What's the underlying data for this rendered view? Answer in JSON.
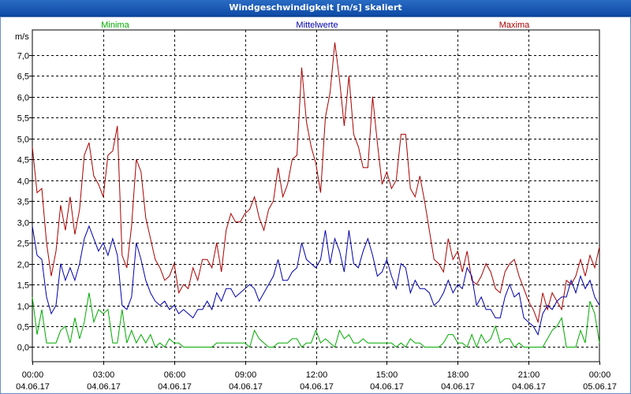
{
  "window": {
    "title": "Windgeschwindigkeit [m/s] skaliert"
  },
  "legend": {
    "min_label": "Minima",
    "mean_label": "Mittelwerte",
    "max_label": "Maxima"
  },
  "colors": {
    "min": "#00aa00",
    "mean": "#0000aa",
    "max": "#aa0000",
    "grid": "#000000"
  },
  "chart_data": {
    "type": "line",
    "title": "Windgeschwindigkeit [m/s] skaliert",
    "ylabel": "m/s",
    "xlabel": "",
    "ylim": [
      -0.35,
      7.6
    ],
    "xlim_hours": [
      0,
      24
    ],
    "grid": true,
    "yticks": [
      "0,0",
      "0,5",
      "1,0",
      "1,5",
      "2,0",
      "2,5",
      "3,0",
      "3,5",
      "4,0",
      "4,5",
      "5,0",
      "5,5",
      "6,0",
      "6,5",
      "7,0"
    ],
    "xticks": [
      {
        "time": "00:00",
        "date": "04.06.17"
      },
      {
        "time": "03:00",
        "date": "04.06.17"
      },
      {
        "time": "06:00",
        "date": "04.06.17"
      },
      {
        "time": "09:00",
        "date": "04.06.17"
      },
      {
        "time": "12:00",
        "date": "04.06.17"
      },
      {
        "time": "15:00",
        "date": "04.06.17"
      },
      {
        "time": "18:00",
        "date": "04.06.17"
      },
      {
        "time": "21:00",
        "date": "04.06.17"
      },
      {
        "time": "00:00",
        "date": "05.06.17"
      }
    ],
    "series": [
      {
        "name": "Maxima",
        "color": "#aa0000",
        "x": [
          0,
          0.2,
          0.4,
          0.6,
          0.8,
          1.0,
          1.2,
          1.4,
          1.6,
          1.8,
          2.0,
          2.2,
          2.4,
          2.6,
          2.8,
          3.0,
          3.2,
          3.4,
          3.6,
          3.8,
          4.0,
          4.2,
          4.4,
          4.6,
          4.8,
          5.0,
          5.2,
          5.4,
          5.6,
          5.8,
          6.0,
          6.2,
          6.4,
          6.6,
          6.8,
          7.0,
          7.2,
          7.4,
          7.6,
          7.8,
          8.0,
          8.2,
          8.4,
          8.6,
          8.8,
          9.0,
          9.2,
          9.4,
          9.6,
          9.8,
          10.0,
          10.2,
          10.4,
          10.6,
          10.8,
          11.0,
          11.2,
          11.4,
          11.6,
          11.8,
          12.0,
          12.2,
          12.4,
          12.6,
          12.8,
          13.0,
          13.2,
          13.4,
          13.6,
          13.8,
          14.0,
          14.2,
          14.4,
          14.6,
          14.8,
          15.0,
          15.2,
          15.4,
          15.6,
          15.8,
          16.0,
          16.2,
          16.4,
          16.6,
          16.8,
          17.0,
          17.2,
          17.4,
          17.6,
          17.8,
          18.0,
          18.2,
          18.4,
          18.6,
          18.8,
          19.0,
          19.2,
          19.4,
          19.6,
          19.8,
          20.0,
          20.2,
          20.4,
          20.6,
          20.8,
          21.0,
          21.2,
          21.4,
          21.6,
          21.8,
          22.0,
          22.2,
          22.4,
          22.6,
          22.8,
          23.0,
          23.2,
          23.4,
          23.6,
          23.8,
          24.0
        ],
        "values": [
          4.8,
          3.7,
          3.8,
          2.5,
          1.7,
          2.3,
          3.4,
          2.8,
          3.6,
          2.7,
          3.3,
          4.6,
          4.9,
          4.1,
          3.9,
          3.6,
          4.6,
          4.7,
          5.3,
          2.2,
          1.9,
          2.9,
          4.5,
          4.2,
          3.1,
          2.6,
          2.1,
          1.9,
          1.6,
          1.7,
          2.0,
          1.3,
          1.5,
          1.4,
          1.9,
          1.6,
          2.1,
          2.1,
          1.9,
          2.5,
          1.8,
          2.8,
          3.2,
          3.0,
          3.0,
          3.2,
          3.3,
          3.6,
          3.1,
          2.8,
          3.3,
          3.5,
          4.3,
          3.6,
          3.9,
          4.5,
          4.6,
          6.7,
          5.4,
          4.8,
          4.4,
          3.7,
          5.5,
          6.1,
          7.3,
          6.4,
          5.3,
          6.5,
          5.1,
          4.8,
          4.3,
          4.3,
          6.0,
          4.9,
          3.9,
          4.2,
          3.8,
          4.0,
          5.1,
          5.1,
          3.8,
          3.6,
          4.1,
          3.5,
          2.8,
          2.1,
          2.0,
          1.8,
          2.6,
          2.1,
          2.3,
          1.8,
          2.3,
          1.6,
          1.5,
          1.7,
          2.0,
          1.8,
          1.4,
          1.3,
          1.8,
          2.0,
          2.1,
          1.7,
          1.4,
          1.1,
          0.9,
          0.6,
          1.3,
          0.9,
          1.3,
          1.1,
          0.9,
          1.6,
          1.5,
          1.7,
          2.1,
          1.7,
          2.2,
          1.9,
          2.4
        ]
      },
      {
        "name": "Mittelwerte",
        "color": "#0000aa",
        "x": [
          0,
          0.2,
          0.4,
          0.6,
          0.8,
          1.0,
          1.2,
          1.4,
          1.6,
          1.8,
          2.0,
          2.2,
          2.4,
          2.6,
          2.8,
          3.0,
          3.2,
          3.4,
          3.6,
          3.8,
          4.0,
          4.2,
          4.4,
          4.6,
          4.8,
          5.0,
          5.2,
          5.4,
          5.6,
          5.8,
          6.0,
          6.2,
          6.4,
          6.6,
          6.8,
          7.0,
          7.2,
          7.4,
          7.6,
          7.8,
          8.0,
          8.2,
          8.4,
          8.6,
          8.8,
          9.0,
          9.2,
          9.4,
          9.6,
          9.8,
          10.0,
          10.2,
          10.4,
          10.6,
          10.8,
          11.0,
          11.2,
          11.4,
          11.6,
          11.8,
          12.0,
          12.2,
          12.4,
          12.6,
          12.8,
          13.0,
          13.2,
          13.4,
          13.6,
          13.8,
          14.0,
          14.2,
          14.4,
          14.6,
          14.8,
          15.0,
          15.2,
          15.4,
          15.6,
          15.8,
          16.0,
          16.2,
          16.4,
          16.6,
          16.8,
          17.0,
          17.2,
          17.4,
          17.6,
          17.8,
          18.0,
          18.2,
          18.4,
          18.6,
          18.8,
          19.0,
          19.2,
          19.4,
          19.6,
          19.8,
          20.0,
          20.2,
          20.4,
          20.6,
          20.8,
          21.0,
          21.2,
          21.4,
          21.6,
          21.8,
          22.0,
          22.2,
          22.4,
          22.6,
          22.8,
          23.0,
          23.2,
          23.4,
          23.6,
          23.8,
          24.0
        ],
        "values": [
          2.9,
          2.2,
          2.1,
          1.2,
          0.8,
          1.0,
          2.0,
          1.6,
          1.9,
          1.6,
          2.0,
          2.6,
          2.9,
          2.6,
          2.3,
          2.5,
          2.2,
          2.6,
          2.2,
          1.0,
          0.9,
          1.2,
          2.5,
          2.1,
          1.6,
          1.3,
          1.1,
          1.0,
          1.1,
          0.9,
          1.0,
          0.8,
          0.9,
          0.8,
          0.7,
          0.9,
          0.9,
          1.1,
          0.9,
          1.3,
          1.1,
          1.4,
          1.4,
          1.2,
          1.3,
          1.4,
          1.5,
          1.4,
          1.1,
          1.3,
          1.5,
          1.7,
          2.1,
          1.6,
          1.6,
          1.8,
          1.9,
          2.5,
          2.1,
          2.0,
          1.9,
          2.1,
          2.8,
          2.0,
          2.6,
          2.3,
          1.8,
          2.8,
          2.0,
          1.9,
          2.3,
          2.6,
          2.2,
          1.7,
          1.8,
          2.1,
          1.7,
          1.4,
          2.0,
          1.9,
          1.3,
          1.6,
          1.4,
          1.4,
          1.3,
          1.0,
          1.1,
          1.3,
          1.6,
          1.3,
          1.5,
          1.4,
          1.9,
          1.7,
          1.0,
          1.2,
          0.9,
          0.9,
          0.7,
          0.7,
          1.2,
          1.5,
          1.2,
          1.3,
          0.7,
          0.6,
          0.5,
          0.3,
          0.8,
          1.0,
          0.9,
          1.1,
          1.2,
          1.2,
          1.6,
          1.3,
          1.7,
          1.4,
          1.6,
          1.2,
          1.0
        ]
      },
      {
        "name": "Minima",
        "color": "#00aa00",
        "x": [
          0,
          0.2,
          0.4,
          0.6,
          0.8,
          1.0,
          1.2,
          1.4,
          1.6,
          1.8,
          2.0,
          2.2,
          2.4,
          2.6,
          2.8,
          3.0,
          3.2,
          3.4,
          3.6,
          3.8,
          4.0,
          4.2,
          4.4,
          4.6,
          4.8,
          5.0,
          5.2,
          5.4,
          5.6,
          5.8,
          6.0,
          6.2,
          6.4,
          6.6,
          6.8,
          7.0,
          7.2,
          7.4,
          7.6,
          7.8,
          8.0,
          8.2,
          8.4,
          8.6,
          8.8,
          9.0,
          9.2,
          9.4,
          9.6,
          9.8,
          10.0,
          10.2,
          10.4,
          10.6,
          10.8,
          11.0,
          11.2,
          11.4,
          11.6,
          11.8,
          12.0,
          12.2,
          12.4,
          12.6,
          12.8,
          13.0,
          13.2,
          13.4,
          13.6,
          13.8,
          14.0,
          14.2,
          14.4,
          14.6,
          14.8,
          15.0,
          15.2,
          15.4,
          15.6,
          15.8,
          16.0,
          16.2,
          16.4,
          16.6,
          16.8,
          17.0,
          17.2,
          17.4,
          17.6,
          17.8,
          18.0,
          18.2,
          18.4,
          18.6,
          18.8,
          19.0,
          19.2,
          19.4,
          19.6,
          19.8,
          20.0,
          20.2,
          20.4,
          20.6,
          20.8,
          21.0,
          21.2,
          21.4,
          21.6,
          21.8,
          22.0,
          22.2,
          22.4,
          22.6,
          22.8,
          23.0,
          23.2,
          23.4,
          23.6,
          23.8,
          24.0
        ],
        "values": [
          1.2,
          0.3,
          0.9,
          0.1,
          0.1,
          0.1,
          0.4,
          0.5,
          0.1,
          0.7,
          0.2,
          0.6,
          1.3,
          0.6,
          0.9,
          0.8,
          0.9,
          0.1,
          0.1,
          0.9,
          0.1,
          0.4,
          0.1,
          0.3,
          0.1,
          0.3,
          0.0,
          0.1,
          0.0,
          0.2,
          0.1,
          0.1,
          0.0,
          0.0,
          0.0,
          0.0,
          0.0,
          0.0,
          0.0,
          0.1,
          0.1,
          0.1,
          0.1,
          0.1,
          0.1,
          0.1,
          0.0,
          0.4,
          0.2,
          0.1,
          0.0,
          0.0,
          0.1,
          0.1,
          0.1,
          0.2,
          0.2,
          0.0,
          0.1,
          0.1,
          0.4,
          0.1,
          0.2,
          0.1,
          0.0,
          0.4,
          0.2,
          0.3,
          0.1,
          0.1,
          0.2,
          0.1,
          0.1,
          0.1,
          0.1,
          0.1,
          0.1,
          0.0,
          0.1,
          0.0,
          0.2,
          0.1,
          0.1,
          0.0,
          0.0,
          0.0,
          0.0,
          0.1,
          0.3,
          0.3,
          0.1,
          0.1,
          0.0,
          0.3,
          0.0,
          0.3,
          0.1,
          0.2,
          0.5,
          0.1,
          0.2,
          0.2,
          0.0,
          0.1,
          0.0,
          0.0,
          0.0,
          0.0,
          0.0,
          0.2,
          0.4,
          0.5,
          0.7,
          0.0,
          0.0,
          0.0,
          0.4,
          0.1,
          1.1,
          0.8,
          0.1
        ]
      }
    ]
  }
}
